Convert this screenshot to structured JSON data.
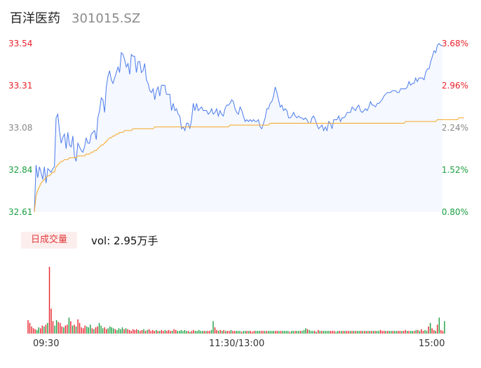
{
  "header": {
    "name": "百洋医药",
    "code": "301015.SZ"
  },
  "volume_panel": {
    "tab_label": "日成交量",
    "summary": "vol: 2.95万手"
  },
  "colors": {
    "up": "#e8222b",
    "down": "#1a9d3e",
    "price_line": "#4b7bec",
    "avg_line": "#f5a623"
  },
  "chart_data": [
    {
      "type": "line",
      "y_ticks_left": [
        "33.54",
        "33.31",
        "33.08",
        "32.84",
        "32.61"
      ],
      "y_ticks_right": [
        "3.68%",
        "2.96%",
        "2.24%",
        "1.52%",
        "0.80%"
      ],
      "x_ticks": [
        "09:30",
        "11:30/13:00",
        "15:00"
      ],
      "ylim": [
        32.61,
        33.54
      ],
      "series": [
        {
          "values": [
            32.61,
            32.87,
            32.8,
            32.86,
            32.83,
            32.79,
            32.86,
            32.77,
            32.85,
            32.84,
            32.83,
            32.85,
            32.86,
            33.13,
            33.15,
            33.06,
            32.99,
            33.02,
            33.04,
            32.96,
            33.05,
            32.98,
            32.97,
            33.03,
            32.92,
            32.89,
            32.99,
            32.97,
            32.95,
            32.94,
            32.97,
            33.02,
            32.99,
            32.99,
            33.04,
            33.05,
            33.06,
            33.01,
            33.13,
            33.17,
            33.24,
            33.23,
            33.16,
            33.3,
            33.36,
            33.39,
            33.34,
            33.32,
            33.35,
            33.38,
            33.41,
            33.38,
            33.49,
            33.48,
            33.45,
            33.41,
            33.43,
            33.37,
            33.48,
            33.47,
            33.47,
            33.38,
            33.44,
            33.44,
            33.38,
            33.39,
            33.43,
            33.34,
            33.32,
            33.28,
            33.27,
            33.29,
            33.23,
            33.28,
            33.3,
            33.25,
            33.31,
            33.31,
            33.31,
            33.26,
            33.26,
            33.26,
            33.17,
            33.21,
            33.17,
            33.18,
            33.15,
            33.14,
            33.07,
            33.08,
            33.06,
            33.1,
            33.1,
            33.07,
            33.12,
            33.21,
            33.17,
            33.21,
            33.17,
            33.18,
            33.19,
            33.17,
            33.17,
            33.17,
            33.15,
            33.16,
            33.18,
            33.15,
            33.16,
            33.18,
            33.14,
            33.17,
            33.15,
            33.14,
            33.18,
            33.2,
            33.2,
            33.21,
            33.23,
            33.22,
            33.18,
            33.16,
            33.15,
            33.19,
            33.17,
            33.14,
            33.11,
            33.12,
            33.11,
            33.12,
            33.11,
            33.12,
            33.11,
            33.11,
            33.12,
            33.08,
            33.07,
            33.1,
            33.13,
            33.18,
            33.18,
            33.21,
            33.22,
            33.25,
            33.3,
            33.27,
            33.23,
            33.19,
            33.2,
            33.17,
            33.18,
            33.17,
            33.13,
            33.13,
            33.14,
            33.16,
            33.14,
            33.13,
            33.14,
            33.13,
            33.13,
            33.12,
            33.13,
            33.12,
            33.1,
            33.1,
            33.13,
            33.14,
            33.12,
            33.09,
            33.07,
            33.08,
            33.09,
            33.06,
            33.08,
            33.06,
            33.11,
            33.1,
            33.07,
            33.12,
            33.12,
            33.12,
            33.14,
            33.11,
            33.13,
            33.13,
            33.14,
            33.16,
            33.16,
            33.16,
            33.19,
            33.18,
            33.17,
            33.19,
            33.2,
            33.17,
            33.16,
            33.17,
            33.18,
            33.17,
            33.19,
            33.22,
            33.2,
            33.2,
            33.19,
            33.21,
            33.21,
            33.22,
            33.23,
            33.25,
            33.26,
            33.27,
            33.27,
            33.27,
            33.28,
            33.28,
            33.28,
            33.27,
            33.27,
            33.29,
            33.29,
            33.29,
            33.29,
            33.3,
            33.33,
            33.31,
            33.32,
            33.32,
            33.35,
            33.33,
            33.35,
            33.35,
            33.35,
            33.34,
            33.38,
            33.4,
            33.4,
            33.44,
            33.47,
            33.5,
            33.49,
            33.53,
            33.54,
            33.53,
            33.53
          ]
        },
        {
          "values": [
            32.61,
            32.7,
            32.73,
            32.75,
            32.77,
            32.78,
            32.79,
            32.8,
            32.81,
            32.81,
            32.82,
            32.83,
            32.83,
            32.86,
            32.87,
            32.88,
            32.89,
            32.89,
            32.9,
            32.9,
            32.9,
            32.91,
            32.91,
            32.91,
            32.91,
            32.91,
            32.92,
            32.92,
            32.92,
            32.92,
            32.92,
            32.93,
            32.93,
            32.93,
            32.94,
            32.94,
            32.95,
            32.95,
            32.96,
            32.97,
            32.98,
            32.98,
            32.99,
            33.0,
            33.01,
            33.02,
            33.02,
            33.03,
            33.03,
            33.04,
            33.04,
            33.05,
            33.05,
            33.05,
            33.06,
            33.06,
            33.06,
            33.06,
            33.06,
            33.07,
            33.07,
            33.07,
            33.07,
            33.07,
            33.07,
            33.07,
            33.07,
            33.07,
            33.07,
            33.07,
            33.07,
            33.07,
            33.08,
            33.08,
            33.08,
            33.08,
            33.08,
            33.08,
            33.08,
            33.08,
            33.08,
            33.08,
            33.08,
            33.08,
            33.08,
            33.08,
            33.08,
            33.08,
            33.08,
            33.08,
            33.08,
            33.08,
            33.08,
            33.08,
            33.08,
            33.08,
            33.08,
            33.08,
            33.08,
            33.08,
            33.08,
            33.08,
            33.08,
            33.08,
            33.08,
            33.08,
            33.08,
            33.08,
            33.08,
            33.08,
            33.08,
            33.08,
            33.08,
            33.08,
            33.08,
            33.08,
            33.08,
            33.09,
            33.09,
            33.09,
            33.09,
            33.09,
            33.09,
            33.09,
            33.09,
            33.09,
            33.09,
            33.09,
            33.09,
            33.09,
            33.09,
            33.09,
            33.09,
            33.09,
            33.09,
            33.09,
            33.09,
            33.09,
            33.09,
            33.09,
            33.09,
            33.1,
            33.1,
            33.1,
            33.1,
            33.1,
            33.1,
            33.1,
            33.1,
            33.1,
            33.1,
            33.1,
            33.1,
            33.1,
            33.1,
            33.1,
            33.1,
            33.1,
            33.1,
            33.1,
            33.1,
            33.1,
            33.1,
            33.1,
            33.1,
            33.1,
            33.1,
            33.1,
            33.1,
            33.1,
            33.1,
            33.1,
            33.1,
            33.1,
            33.1,
            33.1,
            33.1,
            33.1,
            33.1,
            33.1,
            33.1,
            33.1,
            33.1,
            33.1,
            33.1,
            33.1,
            33.1,
            33.1,
            33.1,
            33.1,
            33.1,
            33.1,
            33.1,
            33.1,
            33.1,
            33.1,
            33.1,
            33.1,
            33.1,
            33.1,
            33.1,
            33.1,
            33.1,
            33.1,
            33.1,
            33.1,
            33.1,
            33.1,
            33.1,
            33.1,
            33.1,
            33.1,
            33.1,
            33.1,
            33.1,
            33.1,
            33.1,
            33.1,
            33.1,
            33.1,
            33.1,
            33.1,
            33.11,
            33.11,
            33.11,
            33.11,
            33.11,
            33.11,
            33.11,
            33.11,
            33.11,
            33.11,
            33.11,
            33.11,
            33.11,
            33.11,
            33.11,
            33.11,
            33.11,
            33.11,
            33.11,
            33.12,
            33.12,
            33.12,
            33.12,
            33.12,
            33.12,
            33.12,
            33.12,
            33.12,
            33.12,
            33.12,
            33.12,
            33.12,
            33.13,
            33.13,
            33.13,
            33.13
          ]
        }
      ]
    },
    {
      "type": "bar",
      "values": [
        15,
        12,
        8,
        6,
        5,
        4,
        7,
        6,
        9,
        8,
        10,
        12,
        75,
        28,
        14,
        9,
        15,
        13,
        12,
        8,
        7,
        9,
        10,
        18,
        14,
        9,
        10,
        8,
        16,
        12,
        7,
        6,
        9,
        8,
        7,
        10,
        6,
        5,
        7,
        8,
        12,
        9,
        6,
        7,
        5,
        6,
        8,
        7,
        6,
        5,
        4,
        6,
        5,
        7,
        5,
        6,
        5,
        4,
        3,
        5,
        4,
        5,
        4,
        3,
        4,
        5,
        3,
        4,
        5,
        3,
        4,
        3,
        4,
        3,
        3,
        4,
        3,
        4,
        3,
        4,
        3,
        3,
        5,
        4,
        3,
        3,
        4,
        3,
        4,
        3,
        3,
        2,
        3,
        4,
        3,
        3,
        4,
        3,
        3,
        3,
        3,
        3,
        3,
        4,
        14,
        7,
        4,
        3,
        4,
        3,
        4,
        3,
        3,
        3,
        4,
        3,
        3,
        3,
        3,
        3,
        2,
        3,
        3,
        3,
        3,
        3,
        2,
        3,
        3,
        3,
        3,
        3,
        3,
        3,
        3,
        3,
        3,
        3,
        3,
        3,
        3,
        3,
        3,
        3,
        3,
        3,
        3,
        2,
        3,
        3,
        3,
        3,
        3,
        3,
        3,
        4,
        6,
        5,
        4,
        3,
        3,
        3,
        2,
        4,
        3,
        3,
        3,
        3,
        3,
        3,
        3,
        3,
        3,
        2,
        3,
        3,
        3,
        3,
        3,
        3,
        3,
        3,
        3,
        3,
        3,
        3,
        3,
        3,
        3,
        3,
        3,
        3,
        3,
        3,
        3,
        3,
        3,
        3,
        4,
        3,
        3,
        3,
        3,
        3,
        3,
        3,
        3,
        3,
        3,
        3,
        3,
        3,
        4,
        3,
        3,
        3,
        3,
        3,
        4,
        4,
        3,
        5,
        3,
        4,
        3,
        8,
        12,
        6,
        4,
        3,
        10,
        18,
        4,
        3,
        14
      ],
      "colors": "rrrrrggrrgrgrrrggrrrgrrgrgrgrrrrrgggrgrrgggrrggggrggggrgrrrrrrgrrgrgrrrrgrgrrgrrrgrrggggggrgrrgggggrgrrggrrgrgrgrrgrrgggrggrgrrrgggrrgrggggrrgrggggrggrggrgggrgggrgrgrggggrrrggrgrgrrgrgrggrgrgrgrgrggrrrgrggrggrrgrrgrggrgrgrrggrgrrgrgrrgrg"
    }
  ]
}
